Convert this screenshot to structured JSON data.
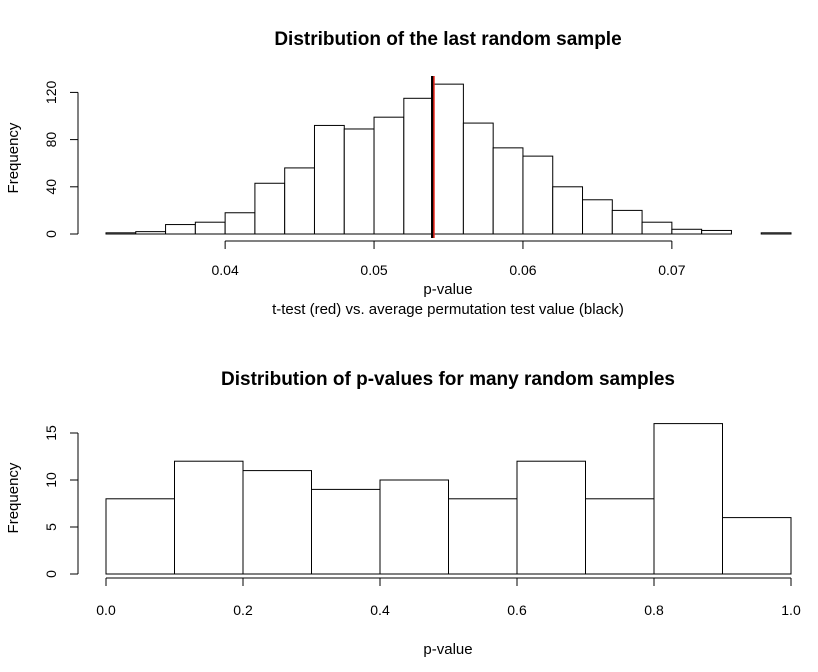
{
  "chart_data": [
    {
      "type": "bar",
      "title": "Distribution of the last random sample",
      "xlabel": "p-value",
      "subtitle": "t-test (red) vs. average permutation test value (black)",
      "ylabel": "Frequency",
      "bin_edges": [
        0.032,
        0.034,
        0.036,
        0.038,
        0.04,
        0.042,
        0.044,
        0.046,
        0.048,
        0.05,
        0.052,
        0.054,
        0.056,
        0.058,
        0.06,
        0.062,
        0.064,
        0.066,
        0.068,
        0.07,
        0.072,
        0.074,
        0.076,
        0.078
      ],
      "values": [
        1,
        2,
        8,
        10,
        18,
        43,
        56,
        92,
        89,
        99,
        115,
        127,
        94,
        73,
        66,
        40,
        29,
        20,
        10,
        4,
        3,
        0,
        1
      ],
      "xlim": [
        0.032,
        0.078
      ],
      "ylim": [
        0,
        130
      ],
      "xticks": [
        0.04,
        0.05,
        0.06,
        0.07
      ],
      "xtick_labels": [
        "0.04",
        "0.05",
        "0.06",
        "0.07"
      ],
      "yticks": [
        0,
        40,
        80,
        120
      ],
      "ytick_labels": [
        "0",
        "40",
        "80",
        "120"
      ],
      "vlines": [
        {
          "name": "t-test",
          "x": 0.0539,
          "color": "#e8251b"
        },
        {
          "name": "average permutation test value",
          "x": 0.0539,
          "color": "#000000"
        }
      ],
      "grid": false
    },
    {
      "type": "bar",
      "title": "Distribution of p-values for many random samples",
      "xlabel": "p-value",
      "ylabel": "Frequency",
      "bin_edges": [
        0.0,
        0.1,
        0.2,
        0.3,
        0.4,
        0.5,
        0.6,
        0.7,
        0.8,
        0.9,
        1.0
      ],
      "values": [
        8,
        12,
        11,
        9,
        10,
        8,
        12,
        8,
        16,
        6
      ],
      "xlim": [
        0,
        1
      ],
      "ylim": [
        0,
        16
      ],
      "xticks": [
        0.0,
        0.2,
        0.4,
        0.6,
        0.8,
        1.0
      ],
      "xtick_labels": [
        "0.0",
        "0.2",
        "0.4",
        "0.6",
        "0.8",
        "1.0"
      ],
      "yticks": [
        0,
        5,
        10,
        15
      ],
      "ytick_labels": [
        "0",
        "5",
        "10",
        "15"
      ],
      "grid": false
    }
  ]
}
